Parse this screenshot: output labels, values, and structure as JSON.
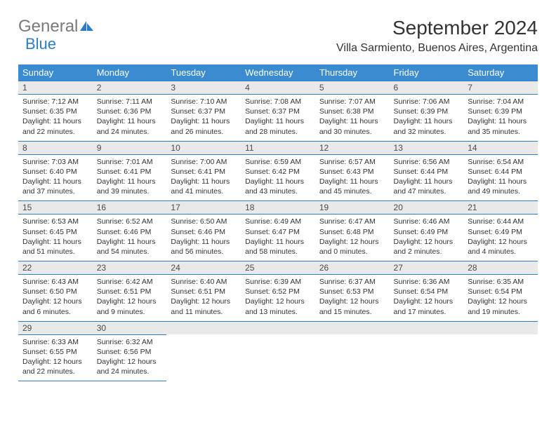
{
  "logo": {
    "general": "General",
    "blue": "Blue"
  },
  "title": "September 2024",
  "location": "Villa Sarmiento, Buenos Aires, Argentina",
  "colors": {
    "header_bg": "#3a8bcf",
    "daynum_bg": "#e9e9e9",
    "rule": "#2e7cc2",
    "logo_gray": "#7a7a7a",
    "logo_blue": "#2e7cc2",
    "text": "#333333"
  },
  "weekdays": [
    "Sunday",
    "Monday",
    "Tuesday",
    "Wednesday",
    "Thursday",
    "Friday",
    "Saturday"
  ],
  "weeks": [
    [
      {
        "n": "1",
        "sunrise": "Sunrise: 7:12 AM",
        "sunset": "Sunset: 6:35 PM",
        "daylight": "Daylight: 11 hours and 22 minutes."
      },
      {
        "n": "2",
        "sunrise": "Sunrise: 7:11 AM",
        "sunset": "Sunset: 6:36 PM",
        "daylight": "Daylight: 11 hours and 24 minutes."
      },
      {
        "n": "3",
        "sunrise": "Sunrise: 7:10 AM",
        "sunset": "Sunset: 6:37 PM",
        "daylight": "Daylight: 11 hours and 26 minutes."
      },
      {
        "n": "4",
        "sunrise": "Sunrise: 7:08 AM",
        "sunset": "Sunset: 6:37 PM",
        "daylight": "Daylight: 11 hours and 28 minutes."
      },
      {
        "n": "5",
        "sunrise": "Sunrise: 7:07 AM",
        "sunset": "Sunset: 6:38 PM",
        "daylight": "Daylight: 11 hours and 30 minutes."
      },
      {
        "n": "6",
        "sunrise": "Sunrise: 7:06 AM",
        "sunset": "Sunset: 6:39 PM",
        "daylight": "Daylight: 11 hours and 32 minutes."
      },
      {
        "n": "7",
        "sunrise": "Sunrise: 7:04 AM",
        "sunset": "Sunset: 6:39 PM",
        "daylight": "Daylight: 11 hours and 35 minutes."
      }
    ],
    [
      {
        "n": "8",
        "sunrise": "Sunrise: 7:03 AM",
        "sunset": "Sunset: 6:40 PM",
        "daylight": "Daylight: 11 hours and 37 minutes."
      },
      {
        "n": "9",
        "sunrise": "Sunrise: 7:01 AM",
        "sunset": "Sunset: 6:41 PM",
        "daylight": "Daylight: 11 hours and 39 minutes."
      },
      {
        "n": "10",
        "sunrise": "Sunrise: 7:00 AM",
        "sunset": "Sunset: 6:41 PM",
        "daylight": "Daylight: 11 hours and 41 minutes."
      },
      {
        "n": "11",
        "sunrise": "Sunrise: 6:59 AM",
        "sunset": "Sunset: 6:42 PM",
        "daylight": "Daylight: 11 hours and 43 minutes."
      },
      {
        "n": "12",
        "sunrise": "Sunrise: 6:57 AM",
        "sunset": "Sunset: 6:43 PM",
        "daylight": "Daylight: 11 hours and 45 minutes."
      },
      {
        "n": "13",
        "sunrise": "Sunrise: 6:56 AM",
        "sunset": "Sunset: 6:44 PM",
        "daylight": "Daylight: 11 hours and 47 minutes."
      },
      {
        "n": "14",
        "sunrise": "Sunrise: 6:54 AM",
        "sunset": "Sunset: 6:44 PM",
        "daylight": "Daylight: 11 hours and 49 minutes."
      }
    ],
    [
      {
        "n": "15",
        "sunrise": "Sunrise: 6:53 AM",
        "sunset": "Sunset: 6:45 PM",
        "daylight": "Daylight: 11 hours and 51 minutes."
      },
      {
        "n": "16",
        "sunrise": "Sunrise: 6:52 AM",
        "sunset": "Sunset: 6:46 PM",
        "daylight": "Daylight: 11 hours and 54 minutes."
      },
      {
        "n": "17",
        "sunrise": "Sunrise: 6:50 AM",
        "sunset": "Sunset: 6:46 PM",
        "daylight": "Daylight: 11 hours and 56 minutes."
      },
      {
        "n": "18",
        "sunrise": "Sunrise: 6:49 AM",
        "sunset": "Sunset: 6:47 PM",
        "daylight": "Daylight: 11 hours and 58 minutes."
      },
      {
        "n": "19",
        "sunrise": "Sunrise: 6:47 AM",
        "sunset": "Sunset: 6:48 PM",
        "daylight": "Daylight: 12 hours and 0 minutes."
      },
      {
        "n": "20",
        "sunrise": "Sunrise: 6:46 AM",
        "sunset": "Sunset: 6:49 PM",
        "daylight": "Daylight: 12 hours and 2 minutes."
      },
      {
        "n": "21",
        "sunrise": "Sunrise: 6:44 AM",
        "sunset": "Sunset: 6:49 PM",
        "daylight": "Daylight: 12 hours and 4 minutes."
      }
    ],
    [
      {
        "n": "22",
        "sunrise": "Sunrise: 6:43 AM",
        "sunset": "Sunset: 6:50 PM",
        "daylight": "Daylight: 12 hours and 6 minutes."
      },
      {
        "n": "23",
        "sunrise": "Sunrise: 6:42 AM",
        "sunset": "Sunset: 6:51 PM",
        "daylight": "Daylight: 12 hours and 9 minutes."
      },
      {
        "n": "24",
        "sunrise": "Sunrise: 6:40 AM",
        "sunset": "Sunset: 6:51 PM",
        "daylight": "Daylight: 12 hours and 11 minutes."
      },
      {
        "n": "25",
        "sunrise": "Sunrise: 6:39 AM",
        "sunset": "Sunset: 6:52 PM",
        "daylight": "Daylight: 12 hours and 13 minutes."
      },
      {
        "n": "26",
        "sunrise": "Sunrise: 6:37 AM",
        "sunset": "Sunset: 6:53 PM",
        "daylight": "Daylight: 12 hours and 15 minutes."
      },
      {
        "n": "27",
        "sunrise": "Sunrise: 6:36 AM",
        "sunset": "Sunset: 6:54 PM",
        "daylight": "Daylight: 12 hours and 17 minutes."
      },
      {
        "n": "28",
        "sunrise": "Sunrise: 6:35 AM",
        "sunset": "Sunset: 6:54 PM",
        "daylight": "Daylight: 12 hours and 19 minutes."
      }
    ],
    [
      {
        "n": "29",
        "sunrise": "Sunrise: 6:33 AM",
        "sunset": "Sunset: 6:55 PM",
        "daylight": "Daylight: 12 hours and 22 minutes."
      },
      {
        "n": "30",
        "sunrise": "Sunrise: 6:32 AM",
        "sunset": "Sunset: 6:56 PM",
        "daylight": "Daylight: 12 hours and 24 minutes."
      },
      null,
      null,
      null,
      null,
      null
    ]
  ]
}
